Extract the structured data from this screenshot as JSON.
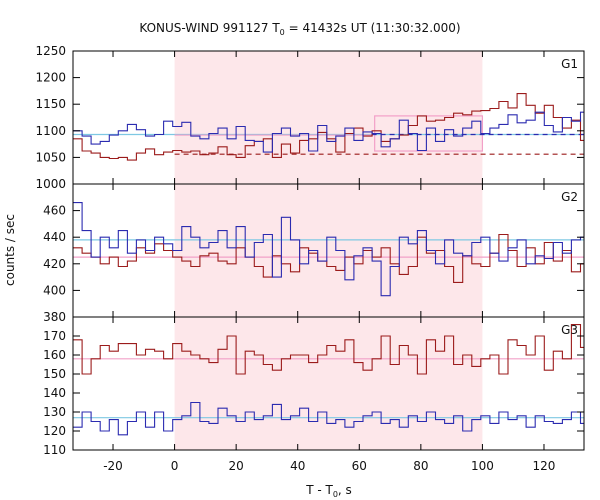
{
  "chart_data": {
    "type": "line",
    "title": "KONUS-WIND 991127 T",
    "title_sub": "0",
    "title_rest": " = 41432s UT (11:30:32.000)",
    "xlabel": "T - T",
    "xlabel_sub": "0",
    "xlabel_rest": ", s",
    "ylabel": "counts / sec",
    "xlim": [
      -33,
      133
    ],
    "x_ticks": [
      -20,
      0,
      20,
      40,
      60,
      80,
      100,
      120
    ],
    "highlight_interval": [
      0,
      100
    ],
    "colors": {
      "red": "#9b1b1b",
      "blue": "#2b2bb0",
      "pink_fill": "#fde7ea",
      "cyan": "#7ec8e3",
      "pink_line": "#f2a0c8"
    },
    "panels": [
      {
        "name": "G1",
        "ylim": [
          1000,
          1250
        ],
        "y_ticks": [
          1000,
          1050,
          1100,
          1150,
          1200,
          1250
        ],
        "series": [
          {
            "color": "red",
            "x_start": -33,
            "step": 2.944,
            "values": [
              1085,
              1062,
              1058,
              1050,
              1048,
              1050,
              1045,
              1058,
              1066,
              1055,
              1060,
              1063,
              1060,
              1062,
              1055,
              1058,
              1070,
              1055,
              1050,
              1072,
              1080,
              1085,
              1050,
              1075,
              1058,
              1082,
              1085,
              1097,
              1085,
              1060,
              1095,
              1105,
              1090,
              1100,
              1080,
              1085,
              1092,
              1110,
              1128,
              1118,
              1120,
              1125,
              1133,
              1130,
              1137,
              1138,
              1142,
              1155,
              1143,
              1170,
              1148,
              1133,
              1148,
              1125,
              1105,
              1120,
              1082,
              1065,
              1098,
              1052,
              1070,
              1046,
              1062,
              1055,
              1050,
              1070,
              1075,
              1055
            ]
          },
          {
            "color": "blue",
            "x_start": -33,
            "step": 2.944,
            "values": [
              1100,
              1090,
              1075,
              1080,
              1092,
              1100,
              1112,
              1102,
              1090,
              1093,
              1118,
              1108,
              1116,
              1090,
              1085,
              1095,
              1105,
              1085,
              1108,
              1082,
              1080,
              1060,
              1095,
              1105,
              1090,
              1095,
              1062,
              1110,
              1080,
              1090,
              1105,
              1082,
              1098,
              1095,
              1070,
              1085,
              1120,
              1095,
              1063,
              1105,
              1080,
              1102,
              1090,
              1105,
              1118,
              1095,
              1105,
              1112,
              1130,
              1115,
              1120,
              1135,
              1110,
              1098,
              1125,
              1118,
              1135,
              1096,
              1110,
              1115,
              1095,
              1080,
              1058,
              1102,
              1115,
              1080,
              1100,
              1097
            ]
          }
        ],
        "ref_lines": [
          {
            "color": "cyan",
            "y": 1093,
            "x_from": -33,
            "x_to": 133,
            "dash": false
          },
          {
            "color": "red",
            "y": 1056,
            "x_from": 0,
            "x_to": 133,
            "dash": true
          },
          {
            "color": "blue",
            "y": 1093,
            "x_from": 64,
            "x_to": 133,
            "dash": true
          },
          {
            "color": "pink_line",
            "y": 1092,
            "x_from": 0,
            "x_to": 64,
            "dash": false
          }
        ],
        "boxes": [
          {
            "x0": 65,
            "x1": 100,
            "y0": 1062,
            "y1": 1128
          }
        ]
      },
      {
        "name": "G2",
        "ylim": [
          380,
          480
        ],
        "y_ticks": [
          380,
          400,
          420,
          440,
          460
        ],
        "series": [
          {
            "color": "red",
            "x_start": -33,
            "step": 2.944,
            "values": [
              432,
              428,
              425,
              420,
              425,
              418,
              422,
              432,
              428,
              435,
              430,
              425,
              422,
              418,
              426,
              428,
              422,
              420,
              432,
              425,
              418,
              410,
              426,
              420,
              414,
              432,
              428,
              422,
              418,
              415,
              425,
              420,
              430,
              425,
              432,
              420,
              412,
              418,
              440,
              428,
              430,
              418,
              406,
              426,
              420,
              418,
              428,
              442,
              430,
              418,
              432,
              420,
              436,
              422,
              430,
              414,
              420,
              426,
              424,
              420,
              418,
              422,
              418,
              428,
              432,
              420,
              415,
              412
            ]
          },
          {
            "color": "blue",
            "x_start": -33,
            "step": 2.944,
            "values": [
              466,
              445,
              425,
              440,
              432,
              445,
              428,
              438,
              430,
              440,
              435,
              430,
              448,
              440,
              432,
              436,
              445,
              432,
              448,
              425,
              436,
              442,
              410,
              455,
              438,
              420,
              430,
              422,
              440,
              430,
              408,
              426,
              432,
              422,
              396,
              418,
              440,
              435,
              445,
              430,
              420,
              438,
              428,
              426,
              436,
              440,
              428,
              422,
              432,
              438,
              420,
              426,
              424,
              436,
              428,
              438,
              440,
              438,
              432,
              438,
              444,
              440,
              432,
              444,
              430,
              442,
              440,
              428
            ]
          }
        ],
        "ref_lines": [
          {
            "color": "cyan",
            "y": 438,
            "x_from": -33,
            "x_to": 133,
            "dash": false
          },
          {
            "color": "pink_line",
            "y": 425,
            "x_from": -33,
            "x_to": 133,
            "dash": false
          }
        ],
        "boxes": []
      },
      {
        "name": "G3",
        "ylim": [
          110,
          180
        ],
        "y_ticks": [
          110,
          120,
          130,
          140,
          150,
          160,
          170
        ],
        "series": [
          {
            "color": "red",
            "x_start": -33,
            "step": 2.944,
            "values": [
              168,
              150,
              158,
              165,
              162,
              166,
              166,
              160,
              163,
              162,
              158,
              166,
              162,
              160,
              158,
              156,
              163,
              170,
              150,
              162,
              160,
              155,
              152,
              158,
              160,
              160,
              156,
              160,
              165,
              162,
              168,
              156,
              152,
              158,
              170,
              155,
              165,
              160,
              150,
              168,
              162,
              170,
              155,
              160,
              154,
              158,
              160,
              150,
              168,
              165,
              160,
              170,
              152,
              162,
              158,
              176,
              164,
              160,
              168,
              162,
              158,
              160,
              168,
              170,
              162,
              155,
              170,
              152
            ]
          },
          {
            "color": "blue",
            "x_start": -33,
            "step": 2.944,
            "values": [
              122,
              130,
              125,
              120,
              126,
              118,
              125,
              130,
              122,
              130,
              120,
              126,
              128,
              135,
              125,
              124,
              132,
              128,
              125,
              130,
              126,
              128,
              134,
              126,
              128,
              132,
              125,
              130,
              124,
              126,
              122,
              125,
              128,
              130,
              124,
              126,
              122,
              128,
              125,
              130,
              126,
              124,
              128,
              120,
              126,
              128,
              124,
              130,
              126,
              128,
              122,
              128,
              125,
              124,
              126,
              130,
              124,
              128,
              130,
              136,
              126,
              130,
              142,
              132,
              128,
              125,
              128,
              122
            ]
          }
        ],
        "ref_lines": [
          {
            "color": "cyan",
            "y": 127,
            "x_from": -33,
            "x_to": 133,
            "dash": false
          },
          {
            "color": "pink_line",
            "y": 158,
            "x_from": -33,
            "x_to": 133,
            "dash": false
          }
        ],
        "boxes": []
      }
    ]
  }
}
